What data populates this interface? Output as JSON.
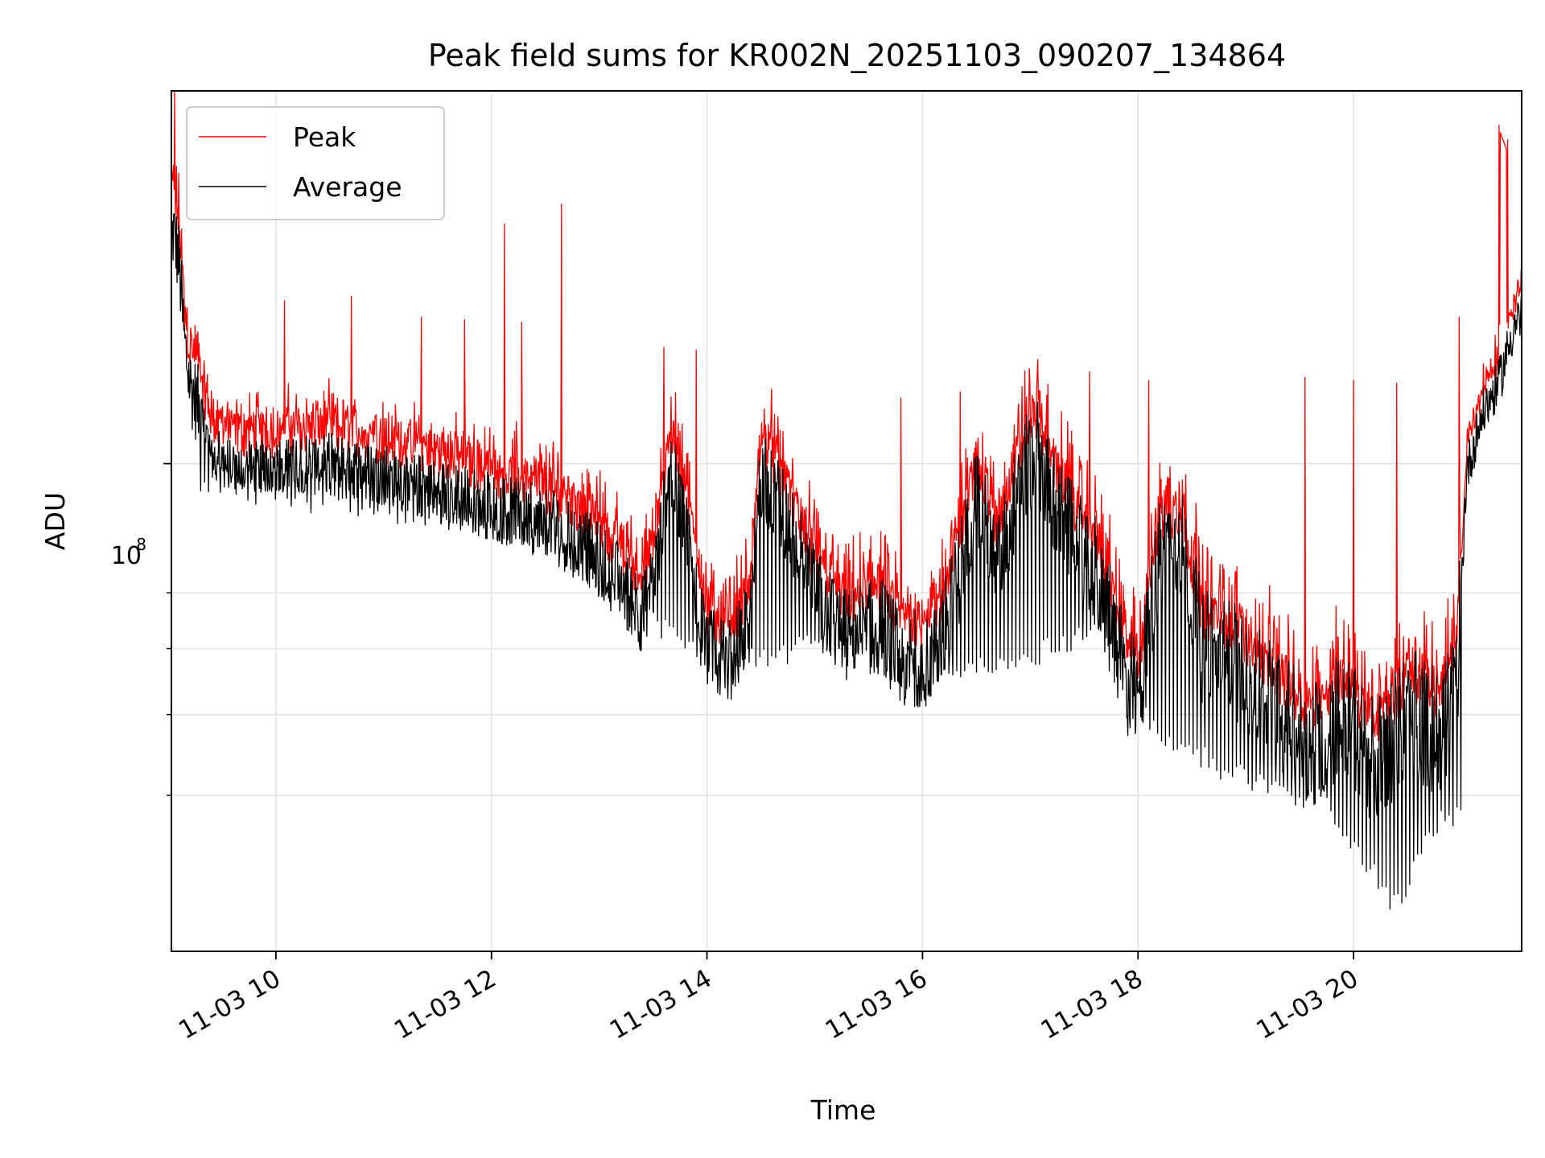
{
  "chart_data": {
    "type": "line",
    "title": "Peak field sums for KR002N_20251103_090207_134864",
    "xlabel": "Time",
    "ylabel": "ADU",
    "yscale": "log",
    "xlim_hours": [
      9.03,
      21.56
    ],
    "ylim": [
      26000000,
      280000000
    ],
    "grid": true,
    "x_ticks": [
      {
        "hour": 10,
        "label": "11-03 10"
      },
      {
        "hour": 12,
        "label": "11-03 12"
      },
      {
        "hour": 14,
        "label": "11-03 14"
      },
      {
        "hour": 16,
        "label": "11-03 16"
      },
      {
        "hour": 18,
        "label": "11-03 18"
      },
      {
        "hour": 20,
        "label": "11-03 20"
      }
    ],
    "y_major_ticks": [
      {
        "value": 100000000,
        "label_base": "10",
        "label_exp": "8"
      }
    ],
    "y_minor_ticks": [
      40000000,
      50000000,
      60000000,
      70000000
    ],
    "legend": {
      "position": "upper-left",
      "entries": [
        "Peak",
        "Average"
      ]
    },
    "colors": {
      "Peak": "#ff0000",
      "Average": "#000000"
    },
    "series": [
      {
        "name": "Average",
        "color": "#000000",
        "baseline_hours": [
          9.03,
          9.05,
          9.1,
          9.15,
          9.2,
          9.3,
          9.4,
          9.6,
          10.0,
          10.5,
          11.0,
          11.5,
          12.0,
          12.5,
          12.9,
          13.2,
          13.4,
          13.55,
          13.65,
          13.8,
          14.0,
          14.2,
          14.4,
          14.5,
          14.7,
          15.0,
          15.3,
          15.6,
          15.8,
          16.1,
          16.3,
          16.5,
          16.7,
          16.9,
          17.05,
          17.3,
          17.6,
          17.9,
          18.0,
          18.2,
          18.4,
          18.6,
          18.9,
          19.2,
          19.6,
          19.9,
          20.2,
          20.5,
          20.8,
          20.95,
          21.05,
          21.2,
          21.35,
          21.5,
          21.56
        ],
        "baseline_values": [
          185000000,
          190000000,
          175000000,
          140000000,
          125000000,
          115000000,
          104000000,
          99000000,
          99000000,
          101000000,
          97000000,
          93000000,
          89000000,
          85000000,
          79000000,
          72000000,
          66000000,
          78000000,
          100000000,
          85000000,
          60000000,
          58000000,
          64000000,
          97000000,
          88000000,
          70000000,
          62000000,
          65000000,
          58000000,
          59000000,
          70000000,
          92000000,
          75000000,
          95000000,
          104000000,
          85000000,
          75000000,
          55000000,
          52000000,
          78000000,
          80000000,
          60000000,
          58000000,
          52000000,
          46000000,
          50000000,
          44000000,
          50000000,
          48000000,
          52000000,
          98000000,
          115000000,
          125000000,
          148000000,
          150000000
        ],
        "dip_hours": [
          9.4,
          9.6,
          10.1,
          10.7,
          11.3,
          11.9,
          12.3,
          12.7,
          13.5,
          14.1,
          14.3,
          15.1,
          15.5,
          15.9,
          16.2,
          17.7,
          18.1,
          18.7,
          19.3,
          19.7,
          19.9,
          20.3,
          20.4,
          20.8
        ],
        "dip_values": [
          93000000,
          92000000,
          90000000,
          87000000,
          86000000,
          84000000,
          80000000,
          76000000,
          64000000,
          56000000,
          57000000,
          60000000,
          57000000,
          54000000,
          54000000,
          62000000,
          48000000,
          43000000,
          40000000,
          39000000,
          36000000,
          30000000,
          29000000,
          37000000
        ]
      },
      {
        "name": "Peak",
        "color": "#ff0000",
        "spike_hours": [
          9.06,
          10.08,
          10.7,
          11.35,
          11.75,
          12.12,
          12.28,
          12.65,
          13.6,
          13.9,
          14.6,
          15.8,
          16.35,
          17.55,
          18.1,
          19.55,
          20.0,
          20.4,
          20.98,
          21.35,
          21.43
        ],
        "spike_values": [
          280000000,
          157000000,
          159000000,
          150000000,
          149000000,
          194000000,
          148000000,
          205000000,
          138000000,
          137000000,
          123000000,
          120000000,
          122000000,
          129000000,
          126000000,
          127000000,
          126000000,
          125000000,
          150000000,
          255000000,
          245000000
        ]
      }
    ]
  }
}
